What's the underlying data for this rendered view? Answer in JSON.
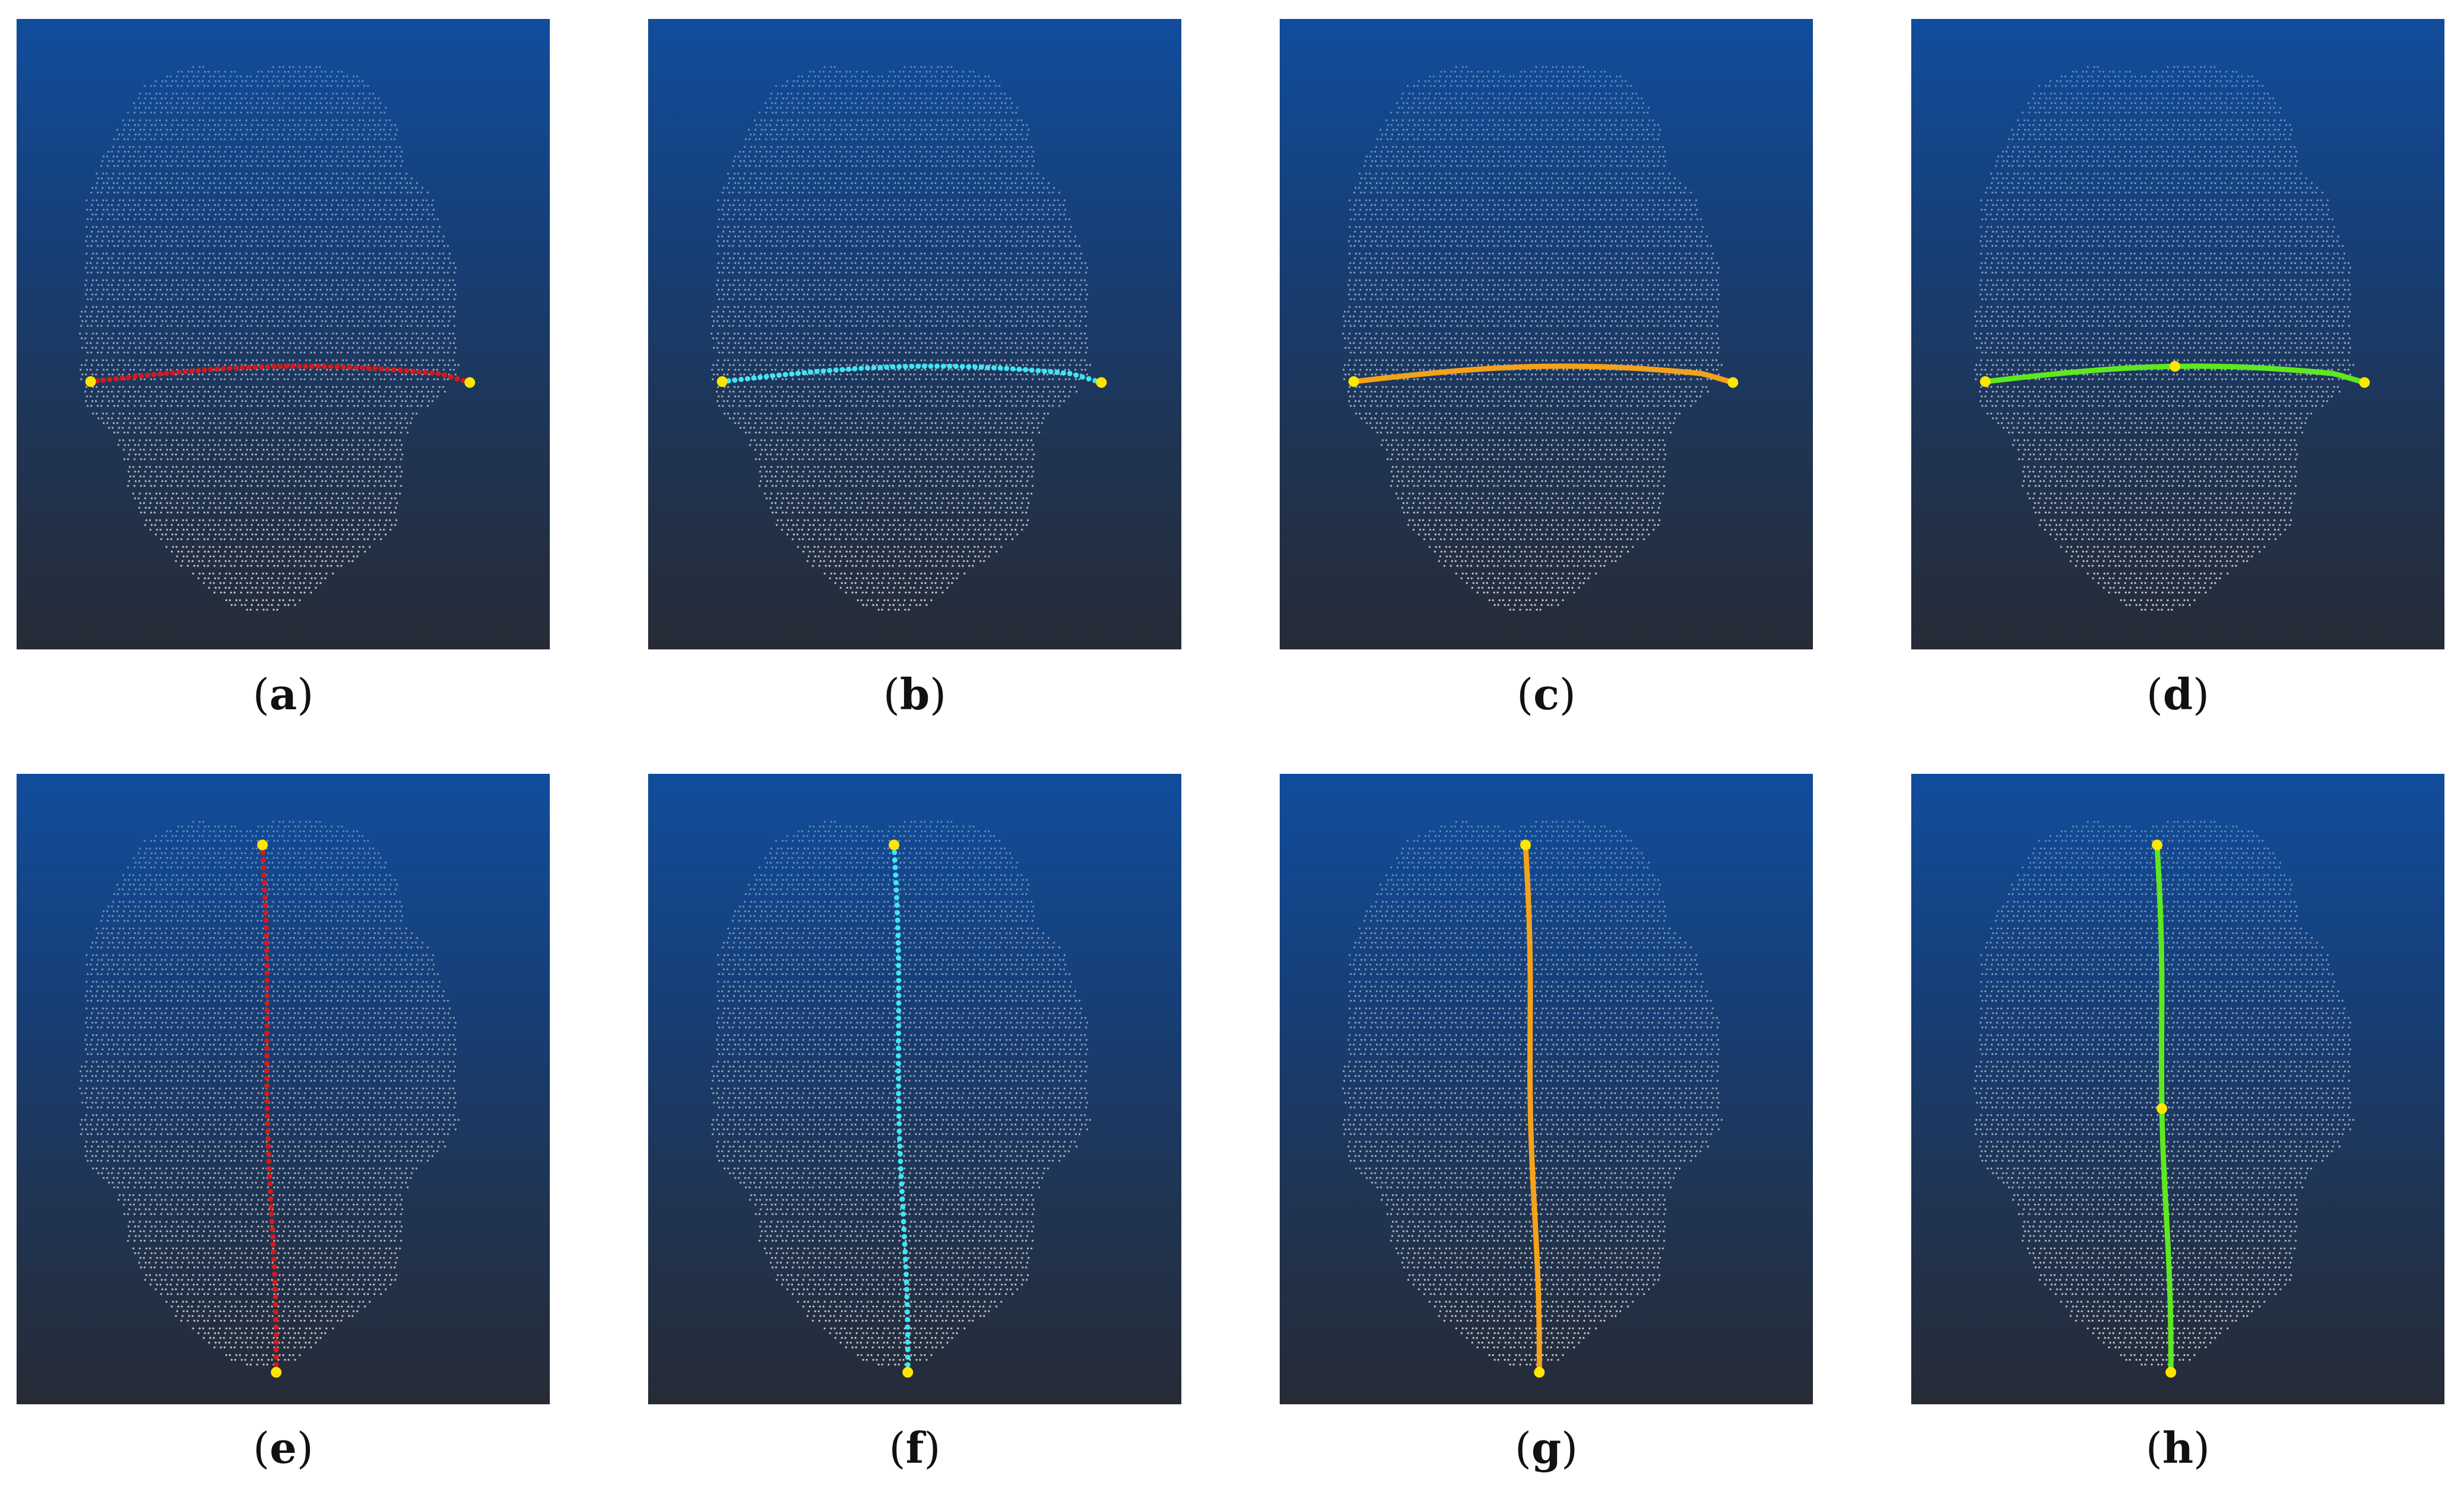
{
  "figure": {
    "panels": [
      {
        "id": "a",
        "label_open": "(",
        "label_letter": "a",
        "label_close": ")",
        "path_orientation": "horizontal",
        "path_style": "dotted",
        "path_color": "#d41a1a",
        "endpoint_color": "#ffe600",
        "waypoints": 0
      },
      {
        "id": "b",
        "label_open": "(",
        "label_letter": "b",
        "label_close": ")",
        "path_orientation": "horizontal",
        "path_style": "dotted",
        "path_color": "#3fe6f2",
        "endpoint_color": "#ffe600",
        "waypoints": 0
      },
      {
        "id": "c",
        "label_open": "(",
        "label_letter": "c",
        "label_close": ")",
        "path_orientation": "horizontal",
        "path_style": "solid",
        "path_color": "#f4a21c",
        "endpoint_color": "#ffe600",
        "waypoints": 0
      },
      {
        "id": "d",
        "label_open": "(",
        "label_letter": "d",
        "label_close": ")",
        "path_orientation": "horizontal",
        "path_style": "solid",
        "path_color": "#5ee820",
        "endpoint_color": "#ffe600",
        "waypoints": 1
      },
      {
        "id": "e",
        "label_open": "(",
        "label_letter": "e",
        "label_close": ")",
        "path_orientation": "vertical",
        "path_style": "dotted",
        "path_color": "#d41a1a",
        "endpoint_color": "#ffe600",
        "waypoints": 0
      },
      {
        "id": "f",
        "label_open": "(",
        "label_letter": "f",
        "label_close": ")",
        "path_orientation": "vertical",
        "path_style": "dotted",
        "path_color": "#3fe6f2",
        "endpoint_color": "#ffe600",
        "waypoints": 0
      },
      {
        "id": "g",
        "label_open": "(",
        "label_letter": "g",
        "label_close": ")",
        "path_orientation": "vertical",
        "path_style": "solid",
        "path_color": "#f4a21c",
        "endpoint_color": "#ffe600",
        "waypoints": 0
      },
      {
        "id": "h",
        "label_open": "(",
        "label_letter": "h",
        "label_close": ")",
        "path_orientation": "vertical",
        "path_style": "solid",
        "path_color": "#5ee820",
        "endpoint_color": "#ffe600",
        "waypoints": 1
      }
    ]
  }
}
